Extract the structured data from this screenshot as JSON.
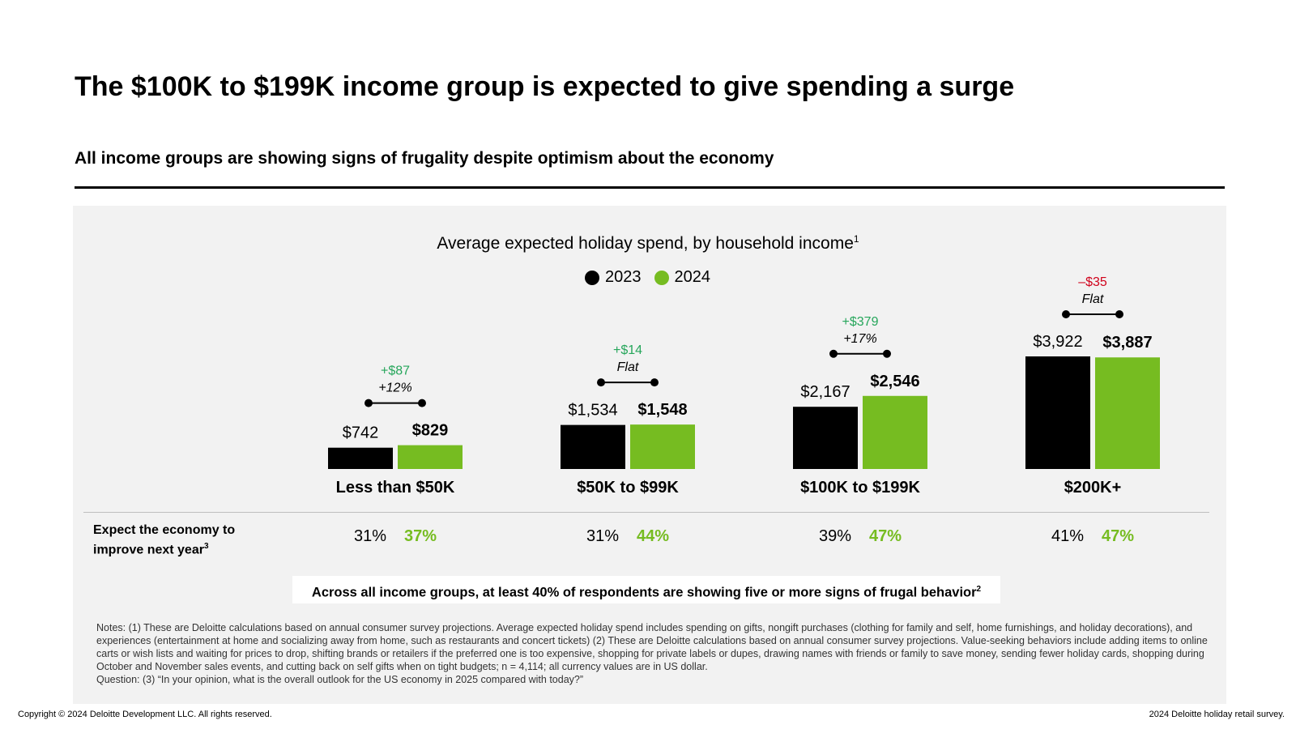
{
  "page": {
    "title": "The $100K to $199K income group is expected to give spending a surge",
    "subtitle": "All income groups are showing signs of frugality despite optimism about the economy"
  },
  "chart_data": {
    "type": "bar",
    "title": "Average expected holiday spend, by household income",
    "title_footnote": "1",
    "categories": [
      "Less than $50K",
      "$50K to $99K",
      "$100K to $199K",
      "$200K+"
    ],
    "series": [
      {
        "name": "2023",
        "color": "#000000",
        "values": [
          742,
          1534,
          2167,
          3922
        ],
        "labels": [
          "$742",
          "$1,534",
          "$2,167",
          "$3,922"
        ]
      },
      {
        "name": "2024",
        "color": "#76bc21",
        "values": [
          829,
          1548,
          2546,
          3887
        ],
        "labels": [
          "$829",
          "$1,548",
          "$2,546",
          "$3,887"
        ]
      }
    ],
    "changes": [
      {
        "amount": "+$87",
        "percent": "+12%",
        "color": "#26a65b"
      },
      {
        "amount": "+$14",
        "percent": "Flat",
        "color": "#26a65b"
      },
      {
        "amount": "+$379",
        "percent": "+17%",
        "color": "#26a65b"
      },
      {
        "amount": "–$35",
        "percent": "Flat",
        "color": "#d0021b"
      }
    ],
    "legend_position": "top-center",
    "grid": false
  },
  "economy": {
    "label_line1": "Expect the economy to",
    "label_line2": "improve next year",
    "label_footnote": "3",
    "values_2023": [
      "31%",
      "31%",
      "39%",
      "41%"
    ],
    "values_2024": [
      "37%",
      "44%",
      "47%",
      "47%"
    ]
  },
  "callout": {
    "text": "Across all income groups, at least 40% of respondents are showing five or more signs of frugal behavior",
    "footnote": "2"
  },
  "notes": {
    "line1": "Notes: (1) These are Deloitte calculations based on annual consumer survey projections. Average expected holiday spend includes spending on gifts, nongift purchases (clothing for family and self, home furnishings, and holiday decorations), and experiences (entertainment at home and socializing away from home, such as restaurants and concert tickets) (2) These are Deloitte calculations based on annual consumer survey projections. Value-seeking behaviors include adding items to online carts or wish lists and waiting for prices to drop, shifting brands or retailers if the preferred one is too expensive, shopping for private labels or dupes, drawing names with friends or family to save money, sending fewer holiday cards, shopping during October and November sales events, and cutting back on self gifts when on tight budgets; n = 4,114; all currency values are in US dollar.",
    "line2": "Question: (3) “In your opinion, what is the overall outlook for the US economy in 2025 compared with today?”"
  },
  "footer": {
    "copyright": "Copyright © 2024 Deloitte Development LLC. All rights reserved.",
    "source": "2024 Deloitte holiday retail survey."
  }
}
